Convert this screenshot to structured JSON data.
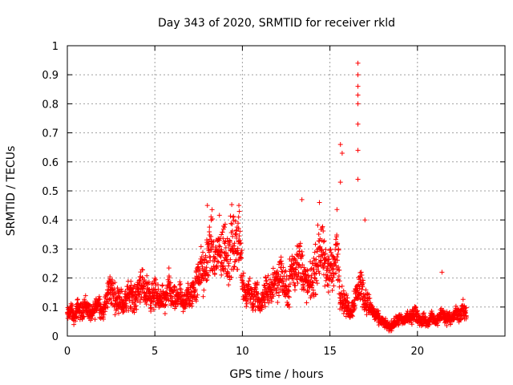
{
  "chart_data": {
    "type": "scatter",
    "title": "Day 343 of 2020, SRMTID for receiver rkld",
    "xlabel": "GPS time / hours",
    "ylabel": "SRMTID / TECUs",
    "xlim": [
      0,
      25
    ],
    "ylim": [
      0,
      1
    ],
    "xticks": [
      0,
      5,
      10,
      15,
      20
    ],
    "xtick_labels": [
      "0",
      "5",
      "10",
      "15",
      "20"
    ],
    "yticks": [
      0,
      0.1,
      0.2,
      0.3,
      0.4,
      0.5,
      0.6,
      0.7,
      0.8,
      0.9,
      1
    ],
    "ytick_labels": [
      "0",
      "0.1",
      "0.2",
      "0.3",
      "0.4",
      "0.5",
      "0.6",
      "0.7",
      "0.8",
      "0.9",
      "1"
    ],
    "grid": true,
    "marker": "+",
    "marker_color": "#ff0000",
    "series": [
      {
        "name": "SRMTID",
        "x": [
          0.0,
          0.2,
          0.4,
          0.6,
          0.8,
          1.0,
          1.2,
          1.4,
          1.6,
          1.8,
          2.0,
          2.2,
          2.4,
          2.6,
          2.8,
          3.0,
          3.2,
          3.4,
          3.6,
          3.8,
          4.0,
          4.2,
          4.4,
          4.6,
          4.8,
          5.0,
          5.2,
          5.4,
          5.6,
          5.8,
          6.0,
          6.2,
          6.4,
          6.6,
          6.8,
          7.0,
          7.2,
          7.4,
          7.6,
          7.8,
          8.0,
          8.2,
          8.4,
          8.6,
          8.8,
          9.0,
          9.2,
          9.4,
          9.6,
          9.8,
          10.0,
          10.2,
          10.4,
          10.6,
          10.8,
          11.0,
          11.2,
          11.4,
          11.6,
          11.8,
          12.0,
          12.2,
          12.4,
          12.6,
          12.8,
          13.0,
          13.2,
          13.4,
          13.6,
          13.8,
          14.0,
          14.2,
          14.4,
          14.6,
          14.8,
          15.0,
          15.2,
          15.4,
          15.6,
          15.8,
          16.0,
          16.2,
          16.4,
          16.6,
          16.8,
          17.0,
          17.2,
          17.4,
          17.6,
          17.8,
          18.0,
          18.2,
          18.4,
          18.6,
          18.8,
          19.0,
          19.2,
          19.4,
          19.6,
          19.8,
          20.0,
          20.2,
          20.4,
          20.6,
          20.8,
          21.0,
          21.2,
          21.4,
          21.6,
          21.8,
          22.0,
          22.2,
          22.4,
          22.6,
          22.8
        ],
        "y": [
          0.07,
          0.09,
          0.06,
          0.1,
          0.08,
          0.11,
          0.09,
          0.07,
          0.1,
          0.12,
          0.08,
          0.11,
          0.17,
          0.15,
          0.12,
          0.14,
          0.1,
          0.13,
          0.16,
          0.12,
          0.15,
          0.19,
          0.14,
          0.16,
          0.13,
          0.15,
          0.12,
          0.14,
          0.11,
          0.17,
          0.13,
          0.12,
          0.15,
          0.1,
          0.14,
          0.13,
          0.16,
          0.18,
          0.24,
          0.2,
          0.27,
          0.33,
          0.25,
          0.3,
          0.28,
          0.31,
          0.26,
          0.33,
          0.29,
          0.36,
          0.2,
          0.14,
          0.17,
          0.12,
          0.15,
          0.1,
          0.13,
          0.17,
          0.14,
          0.2,
          0.19,
          0.22,
          0.17,
          0.14,
          0.24,
          0.21,
          0.28,
          0.23,
          0.19,
          0.17,
          0.2,
          0.23,
          0.31,
          0.27,
          0.22,
          0.25,
          0.21,
          0.32,
          0.14,
          0.12,
          0.1,
          0.08,
          0.13,
          0.16,
          0.18,
          0.12,
          0.11,
          0.09,
          0.07,
          0.06,
          0.05,
          0.04,
          0.03,
          0.04,
          0.05,
          0.06,
          0.05,
          0.07,
          0.06,
          0.08,
          0.07,
          0.05,
          0.06,
          0.04,
          0.07,
          0.05,
          0.06,
          0.08,
          0.06,
          0.07,
          0.06,
          0.08,
          0.07,
          0.09,
          0.08
        ],
        "notable_points": [
          {
            "x": 8.0,
            "y": 0.45
          },
          {
            "x": 9.8,
            "y": 0.45
          },
          {
            "x": 13.4,
            "y": 0.47
          },
          {
            "x": 14.4,
            "y": 0.46
          },
          {
            "x": 15.6,
            "y": 0.66
          },
          {
            "x": 15.7,
            "y": 0.63
          },
          {
            "x": 15.6,
            "y": 0.53
          },
          {
            "x": 16.6,
            "y": 0.94
          },
          {
            "x": 16.6,
            "y": 0.9
          },
          {
            "x": 16.6,
            "y": 0.86
          },
          {
            "x": 16.6,
            "y": 0.83
          },
          {
            "x": 16.6,
            "y": 0.8
          },
          {
            "x": 16.6,
            "y": 0.73
          },
          {
            "x": 16.6,
            "y": 0.64
          },
          {
            "x": 16.6,
            "y": 0.54
          },
          {
            "x": 17.0,
            "y": 0.4
          },
          {
            "x": 21.4,
            "y": 0.22
          }
        ]
      }
    ]
  }
}
